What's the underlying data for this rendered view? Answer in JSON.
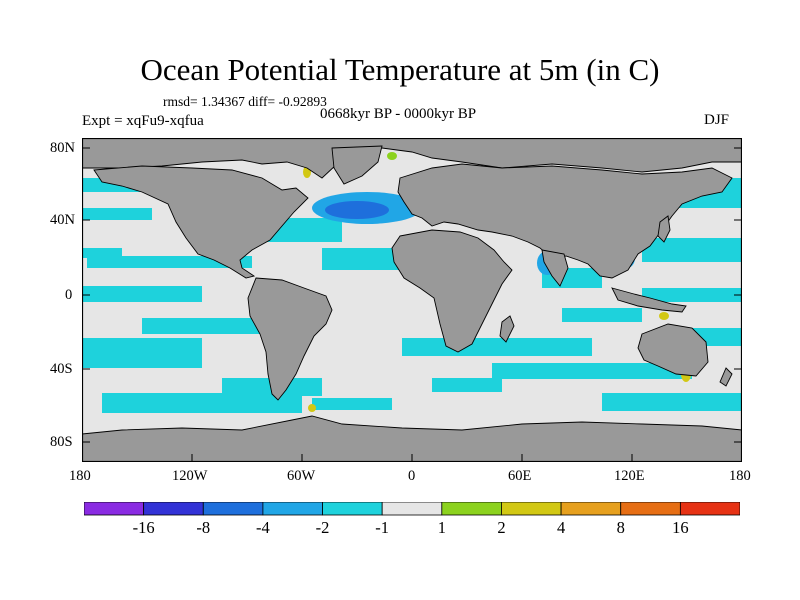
{
  "title": "Ocean Potential Temperature at 5m (in C)",
  "stats": "rmsd= 1.34367 diff= -0.92893",
  "experiment": "Expt = xqFu9-xqfua",
  "period": "0668kyr BP - 0000kyr BP",
  "season": "DJF",
  "lat_ticks": [
    "80N",
    "40N",
    "0",
    "40S",
    "80S"
  ],
  "lon_ticks": [
    "180",
    "120W",
    "60W",
    "0",
    "60E",
    "120E",
    "180"
  ],
  "colorbar": {
    "colors": [
      "#8a2be2",
      "#3232d6",
      "#1e6fdc",
      "#21a6e6",
      "#1ed2dc",
      "#e6e6e6",
      "#8cd21e",
      "#d2c814",
      "#e6a01e",
      "#e66e14",
      "#e63214"
    ],
    "labels": [
      "-16",
      "-8",
      "-4",
      "-2",
      "-1",
      "1",
      "2",
      "4",
      "8",
      "16"
    ]
  },
  "map": {
    "land_color": "#999999",
    "no_change_color": "#e6e6e6",
    "cool_color": "#1ed2dc",
    "strong_cool_color": "#1e6fdc",
    "warm_color": "#8cd21e"
  }
}
